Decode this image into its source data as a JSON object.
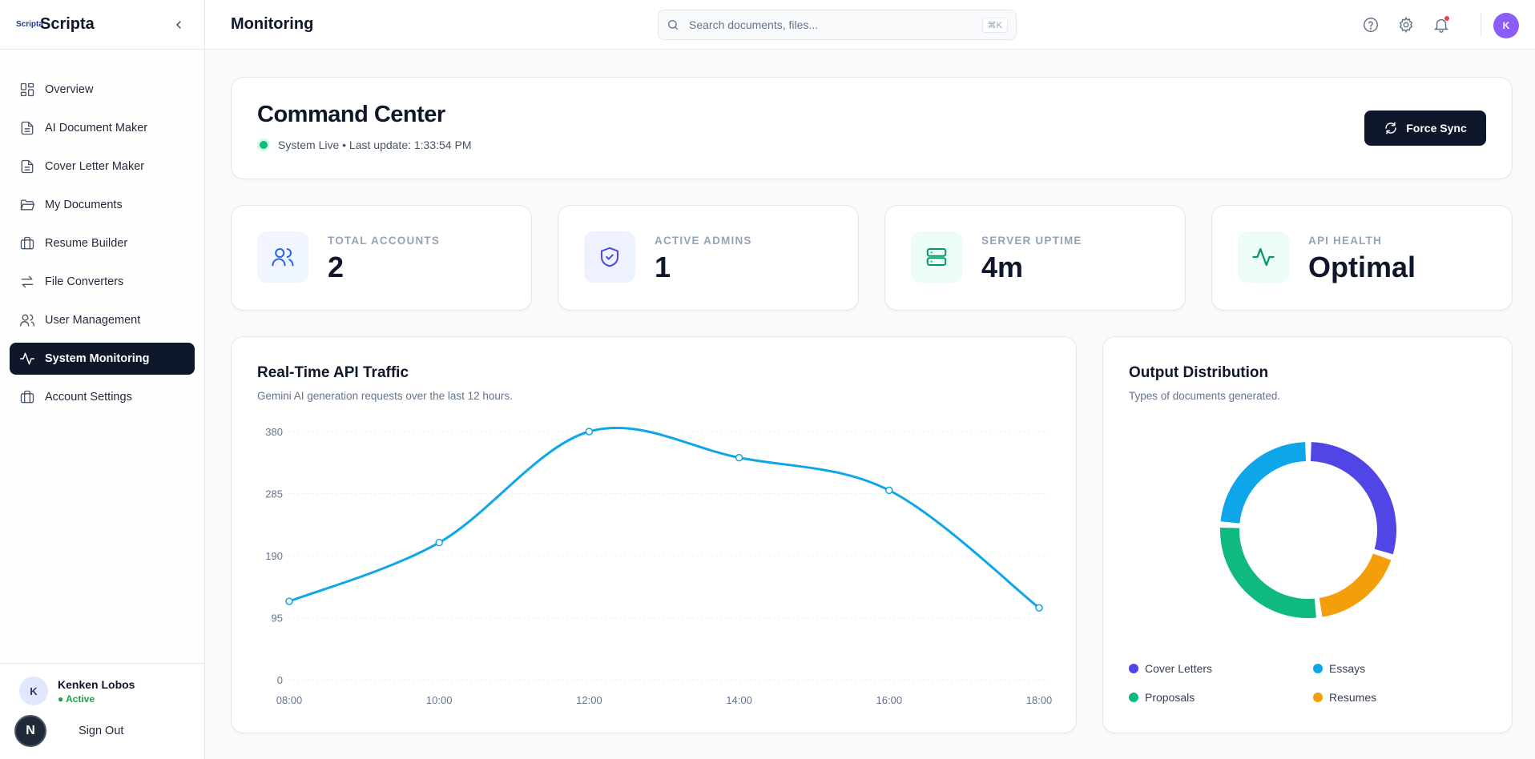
{
  "brand": {
    "logo_text": "Scripta",
    "name": "Scripta"
  },
  "sidebar": {
    "items": [
      {
        "label": "Overview",
        "icon": "grid-icon"
      },
      {
        "label": "AI Document Maker",
        "icon": "file-text-icon"
      },
      {
        "label": "Cover Letter Maker",
        "icon": "file-text-icon"
      },
      {
        "label": "My Documents",
        "icon": "folder-open-icon"
      },
      {
        "label": "Resume Builder",
        "icon": "briefcase-icon"
      },
      {
        "label": "File Converters",
        "icon": "arrows-exchange-icon"
      },
      {
        "label": "User Management",
        "icon": "users-icon"
      },
      {
        "label": "System Monitoring",
        "icon": "activity-icon",
        "active": true
      },
      {
        "label": "Account Settings",
        "icon": "briefcase-icon"
      }
    ],
    "user": {
      "initial": "K",
      "name": "Kenken Lobos",
      "status": "● Active"
    },
    "n_badge": "N",
    "sign_out": "Sign Out"
  },
  "header": {
    "title": "Monitoring",
    "search_placeholder": "Search documents, files...",
    "shortcut": "⌘K",
    "avatar": "K"
  },
  "command_center": {
    "title": "Command Center",
    "status": "System Live • Last update: 1:33:54 PM",
    "button": "Force Sync"
  },
  "stats": [
    {
      "label": "TOTAL ACCOUNTS",
      "value": "2",
      "icon": "users-icon",
      "color": "#2563eb",
      "bg": "#eff6ff"
    },
    {
      "label": "ACTIVE ADMINS",
      "value": "1",
      "icon": "shield-check-icon",
      "color": "#4f46e5",
      "bg": "#eef2ff"
    },
    {
      "label": "SERVER UPTIME",
      "value": "4m",
      "icon": "server-icon",
      "color": "#059669",
      "bg": "#ecfdf5"
    },
    {
      "label": "API HEALTH",
      "value": "Optimal",
      "icon": "activity-icon",
      "color": "#059669",
      "bg": "#ecfdf5"
    }
  ],
  "traffic": {
    "title": "Real-Time API Traffic",
    "subtitle": "Gemini AI generation requests over the last 12 hours."
  },
  "distribution": {
    "title": "Output Distribution",
    "subtitle": "Types of documents generated."
  },
  "chart_data": [
    {
      "type": "line",
      "x": [
        "08:00",
        "10:00",
        "12:00",
        "14:00",
        "16:00",
        "18:00"
      ],
      "values": [
        120,
        210,
        380,
        340,
        290,
        110
      ],
      "y_ticks": [
        0,
        95,
        190,
        285,
        380
      ],
      "ylim": [
        0,
        380
      ],
      "color": "#0ea5e9",
      "grid": true
    },
    {
      "type": "pie",
      "variant": "donut",
      "categories": [
        "Cover Letters",
        "Resumes",
        "Proposals",
        "Essays"
      ],
      "values": [
        30,
        18,
        28,
        24
      ],
      "colors": [
        "#4f46e5",
        "#f59e0b",
        "#10b981",
        "#0ea5e9"
      ],
      "legend": [
        {
          "label": "Cover Letters",
          "color": "#4f46e5"
        },
        {
          "label": "Essays",
          "color": "#0ea5e9"
        },
        {
          "label": "Proposals",
          "color": "#10b981"
        },
        {
          "label": "Resumes",
          "color": "#f59e0b"
        }
      ],
      "legend_position": "bottom"
    }
  ]
}
